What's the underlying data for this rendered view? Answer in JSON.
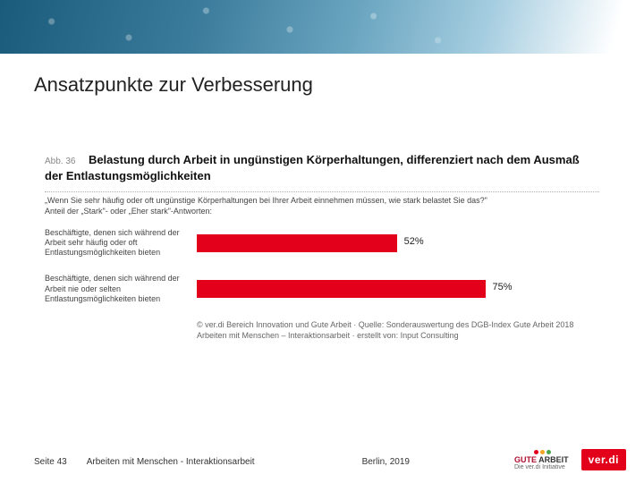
{
  "slide": {
    "title": "Ansatzpunkte zur Verbesserung"
  },
  "figure": {
    "label": "Abb. 36",
    "title": "Belastung durch Arbeit in ungünstigen Körperhaltungen, differenziert nach dem Ausmaß der Entlastungsmöglichkeiten",
    "question": "„Wenn Sie sehr häufig oder oft ungünstige Körperhaltungen bei Ihrer Arbeit einnehmen müssen, wie stark belastet Sie das?\"",
    "subtext": "Anteil der „Stark\"- oder „Eher stark\"-Antworten:",
    "type": "bar",
    "bar_color": "#e2001a",
    "value_fontsize": 11,
    "label_fontsize": 9,
    "max_percent": 100,
    "rows": [
      {
        "label": "Beschäftigte, denen sich während der Arbeit sehr häufig oder oft Entlastungsmöglichkeiten bieten",
        "value": 52,
        "value_label": "52%"
      },
      {
        "label": "Beschäftigte, denen sich während der Arbeit nie oder selten Entlastungsmöglichkeiten bieten",
        "value": 75,
        "value_label": "75%"
      }
    ],
    "source": "© ver.di Bereich Innovation und Gute Arbeit · Quelle: Sonderauswertung des DGB-Index Gute Arbeit 2018 Arbeiten mit Menschen – Interaktionsarbeit · erstellt von: Input Consulting"
  },
  "footer": {
    "page": "Seite 43",
    "title": "Arbeiten mit Menschen - Interaktionsarbeit",
    "place": "Berlin, 2019"
  },
  "logos": {
    "gute_arbeit_main": "GUTE ARBEIT",
    "gute_arbeit_sub": "Die ver.di Initiative",
    "verdi": "ver.di",
    "dot_colors": [
      "#e2001a",
      "#f5a623",
      "#4aa84a"
    ]
  },
  "colors": {
    "banner_from": "#1a5a7a",
    "banner_to": "#ffffff",
    "text": "#222222",
    "muted": "#888888"
  }
}
